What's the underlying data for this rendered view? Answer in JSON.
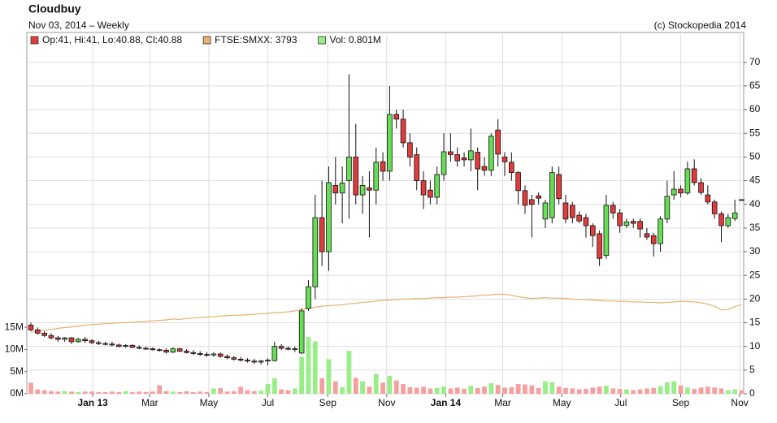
{
  "chart_data": {
    "type": "candlestick",
    "title": "Cloudbuy",
    "subtitle": "Nov 03, 2014 – Weekly",
    "credit": "(c) Stockopedia 2014",
    "grid": true,
    "x": [
      0,
      1,
      2,
      3,
      4,
      5,
      6,
      7,
      8,
      9,
      10,
      11,
      12,
      13,
      14,
      15,
      16,
      17,
      18,
      19,
      20,
      21,
      22,
      23,
      24,
      25,
      26,
      27,
      28,
      29,
      30,
      31,
      32,
      33,
      34,
      35,
      36,
      37,
      38,
      39,
      40,
      41,
      42,
      43,
      44,
      45,
      46,
      47,
      48,
      49,
      50,
      51,
      52,
      53,
      54,
      55,
      56,
      57,
      58,
      59,
      60,
      61,
      62,
      63,
      64,
      65,
      66,
      67,
      68,
      69,
      70,
      71,
      72,
      73,
      74,
      75,
      76,
      77,
      78,
      79,
      80,
      81,
      82,
      83,
      84,
      85,
      86,
      87,
      88,
      89,
      90,
      91,
      92,
      93,
      94,
      95,
      96,
      97,
      98,
      99,
      100,
      101,
      102,
      103,
      104,
      105
    ],
    "xlim": [
      -0.6,
      105.3
    ],
    "xticks": [
      {
        "value": 9.14,
        "label": "Jan 13"
      },
      {
        "value": 17.57,
        "label": "Mar"
      },
      {
        "value": 26.29,
        "label": "May"
      },
      {
        "value": 35,
        "label": "Jul"
      },
      {
        "value": 43.86,
        "label": "Sep"
      },
      {
        "value": 52.57,
        "label": "Nov"
      },
      {
        "value": 61.29,
        "label": "Jan 14"
      },
      {
        "value": 69.71,
        "label": "Mar"
      },
      {
        "value": 78.43,
        "label": "May"
      },
      {
        "value": 87.14,
        "label": "Jul"
      },
      {
        "value": 96,
        "label": "Sep"
      },
      {
        "value": 104.71,
        "label": "Nov"
      }
    ],
    "ylim": [
      0,
      76.3
    ],
    "yticks": [
      0,
      5,
      10,
      15,
      20,
      25,
      30,
      35,
      40,
      45,
      50,
      55,
      60,
      65,
      70
    ],
    "y2lim": [
      0,
      81.5
    ],
    "y2ticks": [
      {
        "value": 0,
        "label": "0M"
      },
      {
        "value": 5,
        "label": "5M"
      },
      {
        "value": 10,
        "label": "10M"
      },
      {
        "value": 15,
        "label": "15M"
      }
    ],
    "series": [
      {
        "name": "Op:41, Hi:41, Lo:40.88, Cl:40.88",
        "type": "candlestick",
        "color": "#e03c3c",
        "up_color": "#66dd55",
        "open": [
          14.5,
          13.5,
          12.8,
          12.3,
          11.8,
          11.5,
          11.8,
          11,
          11.5,
          11.2,
          10.8,
          10.6,
          10.5,
          10.3,
          10,
          10.2,
          9.8,
          9.6,
          9.5,
          9.3,
          9.2,
          8.8,
          9.5,
          9,
          8.7,
          8.5,
          8.3,
          8.2,
          8.4,
          7.9,
          7.6,
          7.3,
          7.1,
          6.9,
          6.7,
          6.9,
          7,
          10,
          9.6,
          9.4,
          8.6,
          18,
          22.6,
          37.2,
          30,
          44,
          42.4,
          45,
          50,
          42,
          43.5,
          43,
          49,
          47,
          59,
          58,
          53,
          50.5,
          45,
          43,
          41.5,
          46.3,
          51.1,
          50.5,
          49.8,
          49.4,
          51,
          48,
          47.2,
          55.7,
          50,
          48.9,
          46.7,
          42.9,
          41,
          41.8,
          36.9,
          37.2,
          46.3,
          40.3,
          39.8,
          37.7,
          37.2,
          35.5,
          33.8,
          29.2,
          39.8,
          38.2,
          35.6,
          36.4,
          36.4,
          33.8,
          33.4,
          31.7,
          36.9,
          42,
          43.2,
          42.4,
          47.5,
          44.6,
          42,
          40.5,
          38,
          35.5,
          37,
          41
        ],
        "high": [
          15,
          14,
          13.2,
          12.8,
          12.2,
          12,
          12,
          11.8,
          12,
          11.5,
          11.2,
          11,
          11,
          10.6,
          10.5,
          10.5,
          10.2,
          10,
          9.8,
          9.6,
          9.6,
          9.8,
          9.7,
          9.4,
          9.2,
          9,
          8.8,
          8.8,
          8.7,
          8.3,
          8,
          7.8,
          7.5,
          7.4,
          7.2,
          7.5,
          11,
          10.5,
          10,
          10,
          18,
          24,
          42,
          45,
          48,
          50,
          48,
          67.5,
          57,
          46,
          47,
          52,
          51,
          65,
          60,
          60,
          55,
          52,
          47,
          45,
          48,
          55,
          55,
          52,
          51,
          56,
          52,
          50,
          55,
          58,
          51,
          51,
          47,
          44,
          42,
          42.5,
          41,
          48,
          48,
          42,
          40.5,
          38.5,
          38,
          36,
          34.5,
          42,
          40.5,
          39,
          37,
          37,
          37,
          35,
          34,
          37.5,
          45,
          47,
          44,
          49,
          49.5,
          45.5,
          44,
          41,
          38.5,
          38,
          41,
          41
        ],
        "low": [
          13.2,
          12.5,
          12,
          11.5,
          11,
          11,
          10.5,
          10.8,
          10.8,
          10.5,
          10.3,
          10.2,
          10,
          9.8,
          9.7,
          9.6,
          9.4,
          9.3,
          9.1,
          8.9,
          8.5,
          8.6,
          8.8,
          8.5,
          8.2,
          8,
          7.8,
          7.8,
          7.6,
          7.3,
          7,
          6.8,
          6.6,
          6.3,
          6.2,
          6,
          6.8,
          9.2,
          9.2,
          8.8,
          8.4,
          17.5,
          20,
          27,
          26,
          40,
          36,
          37,
          40,
          38,
          33,
          40,
          45,
          45,
          56,
          52,
          48,
          43,
          39,
          40,
          40,
          45,
          49,
          48,
          48,
          47,
          43,
          46,
          46,
          48,
          46,
          45,
          40,
          38,
          33,
          40,
          35,
          36,
          40,
          36,
          36,
          36,
          33,
          31,
          27,
          28.5,
          37,
          34,
          35,
          35,
          33,
          32.5,
          29,
          30,
          36,
          41,
          41.5,
          42,
          44,
          42,
          40,
          37,
          32,
          35,
          36.5,
          40.88
        ],
        "close": [
          13.5,
          12.8,
          12.3,
          11.8,
          11.5,
          11.8,
          11,
          11.5,
          11.2,
          10.8,
          10.6,
          10.5,
          10.3,
          10,
          10.2,
          9.8,
          9.6,
          9.5,
          9.3,
          9.2,
          8.8,
          9.5,
          9,
          8.7,
          8.5,
          8.3,
          8.2,
          8.4,
          7.9,
          7.6,
          7.3,
          7.1,
          6.9,
          6.7,
          6.9,
          7.1,
          10,
          9.6,
          9.4,
          9.5,
          17.5,
          22.6,
          37.2,
          30,
          44.6,
          42.4,
          44.5,
          50,
          42,
          44,
          43,
          48.9,
          47,
          59,
          58,
          53,
          50,
          45,
          42,
          41.5,
          46.3,
          51.1,
          50.5,
          49.2,
          49.4,
          51.3,
          47.5,
          47.2,
          54.4,
          50.6,
          49,
          46.7,
          42.9,
          39.8,
          40,
          41.3,
          40.3,
          46.7,
          41.2,
          36.9,
          37.2,
          36.5,
          35.5,
          33.4,
          28.6,
          39.8,
          38.2,
          35.5,
          36.3,
          36,
          34.8,
          33.1,
          31.7,
          36.9,
          41.7,
          43.2,
          42.4,
          47.5,
          44.6,
          42.5,
          40.5,
          38,
          35.5,
          37.2,
          38.2,
          40.88
        ]
      },
      {
        "name": "FTSE:SMXX: 3793",
        "type": "line",
        "color": "#e8b070",
        "values": [
          13,
          13.2,
          13.4,
          13.6,
          13.8,
          14,
          14.1,
          14.3,
          14.5,
          14.6,
          14.7,
          14.8,
          14.9,
          15,
          15,
          15.1,
          15.2,
          15.3,
          15.4,
          15.5,
          15.6,
          15.8,
          15.7,
          15.9,
          16,
          16.1,
          16.2,
          16.3,
          16.4,
          16.5,
          16.6,
          16.6,
          16.7,
          16.8,
          16.9,
          17,
          17.1,
          17.2,
          17.3,
          17.5,
          17.8,
          18,
          18.3,
          18.5,
          18.6,
          18.7,
          18.8,
          19,
          19.1,
          19.3,
          19.4,
          19.6,
          19.7,
          19.8,
          19.9,
          20,
          20,
          20.1,
          20.1,
          20.2,
          20.3,
          20.3,
          20.4,
          20.4,
          20.5,
          20.6,
          20.7,
          20.8,
          20.9,
          21,
          21,
          20.8,
          20.5,
          20.3,
          20.1,
          20.2,
          20.3,
          20.2,
          20.2,
          20.1,
          20,
          19.9,
          19.9,
          19.8,
          19.7,
          19.6,
          19.6,
          19.5,
          19.5,
          19.4,
          19.4,
          19.3,
          19.3,
          19.2,
          19.3,
          19.4,
          19.5,
          19.5,
          19.4,
          19.2,
          18.9,
          18.5,
          17.7,
          17.8,
          18.4,
          18.8
        ]
      },
      {
        "name": "Vol: 0.801M",
        "type": "bar",
        "axis": "y2",
        "color": "#99ee88",
        "down_color": "#f5a0a0",
        "values": [
          2.5,
          1,
          0.8,
          0.6,
          0.5,
          0.6,
          0.5,
          0.4,
          0.5,
          0.5,
          0.4,
          0.4,
          0.5,
          0.4,
          0.6,
          0.4,
          0.5,
          0.4,
          0.5,
          1.9,
          0.6,
          0.5,
          0.4,
          0.6,
          0.4,
          0.5,
          0.4,
          1.2,
          1.3,
          0.5,
          0.6,
          1.6,
          0.8,
          0.6,
          0.7,
          2.2,
          3.5,
          1,
          0.8,
          1.2,
          8.3,
          12.8,
          11.8,
          3.5,
          7.8,
          2.8,
          1.5,
          9.7,
          3.6,
          2.8,
          1.6,
          4.5,
          2.5,
          4,
          3,
          2.2,
          1.5,
          1.4,
          1.6,
          1.2,
          1.3,
          1.6,
          1.2,
          1.4,
          1.1,
          1.8,
          1.3,
          1.6,
          2.4,
          2,
          1.4,
          1.5,
          2.2,
          2.1,
          1.9,
          1.3,
          2.8,
          2.6,
          1.6,
          1.3,
          1.2,
          1,
          1.1,
          1.4,
          1.6,
          1.8,
          1.2,
          1.1,
          1,
          0.8,
          1,
          1.2,
          1.3,
          1.7,
          2.6,
          2.8,
          1.9,
          1.4,
          1.1,
          1.4,
          1.6,
          1.4,
          1.2,
          0.8,
          1,
          0.801
        ]
      }
    ]
  }
}
